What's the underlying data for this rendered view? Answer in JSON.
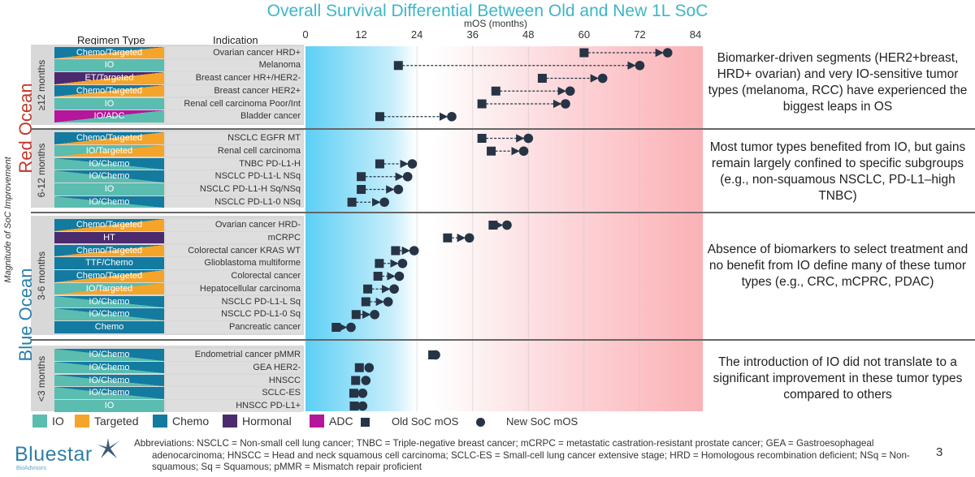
{
  "chart_data": {
    "type": "dumbbell",
    "title": "Overall Survival Differential Between Old and New 1L SoC",
    "xlabel": "mOS (months)",
    "xlim": [
      0,
      84
    ],
    "xticks": [
      "0",
      "12",
      "24",
      "36",
      "48",
      "60",
      "72",
      "84"
    ],
    "grid": "vertical",
    "column_headers": {
      "regimen": "Regimen Type",
      "indication": "Indication"
    },
    "legend_markers": {
      "old": "Old SoC mOS",
      "new": "New SoC mOS"
    },
    "regimen_colors": {
      "IO": "#5bbcb0",
      "Targeted": "#f5a42a",
      "Chemo": "#137aa0",
      "Hormonal": "#4b2a6e",
      "ADC": "#b5169c"
    },
    "regimen_legend": [
      "IO",
      "Targeted",
      "Chemo",
      "Hormonal",
      "ADC"
    ],
    "oceans": {
      "red": "Red Ocean",
      "blue": "Blue Ocean",
      "axis": "Magnitude of SoC Improvement"
    },
    "groups": [
      {
        "label": "≥12 months",
        "note": "Biomarker-driven segments (HER2+breast, HRD+ ovarian) and very IO-sensitive tumor types (melanoma, RCC) have experienced the biggest leaps in OS",
        "rows": [
          {
            "regimen": "Chemo/Targeted",
            "colors": [
              "Chemo",
              "Targeted"
            ],
            "indication": "Ovarian cancer HRD+",
            "old": 60,
            "new": 78
          },
          {
            "regimen": "IO",
            "colors": [
              "IO"
            ],
            "indication": "Melanoma",
            "old": 20,
            "new": 72
          },
          {
            "regimen": "ET/Targeted",
            "colors": [
              "Hormonal",
              "Targeted"
            ],
            "indication": "Breast cancer HR+/HER2-",
            "old": 51,
            "new": 64
          },
          {
            "regimen": "Chemo/Targeted",
            "colors": [
              "Chemo",
              "Targeted"
            ],
            "indication": "Breast cancer HER2+",
            "old": 41,
            "new": 57
          },
          {
            "regimen": "IO",
            "colors": [
              "IO"
            ],
            "indication": "Renal cell carcinoma Poor/Int",
            "old": 38,
            "new": 56
          },
          {
            "regimen": "IO/ADC",
            "colors": [
              "ADC",
              "IO"
            ],
            "indication": "Bladder cancer",
            "old": 16,
            "new": 31.5
          }
        ]
      },
      {
        "label": "6-12 months",
        "note": "Most tumor types benefited from IO, but gains remain largely confined to specific subgroups (e.g., non-squamous NSCLC, PD-L1–high TNBC)",
        "rows": [
          {
            "regimen": "Chemo/Targeted",
            "colors": [
              "Chemo",
              "Targeted"
            ],
            "indication": "NSCLC EGFR MT",
            "old": 38,
            "new": 48
          },
          {
            "regimen": "IO/Targeted",
            "colors": [
              "IO",
              "Targeted"
            ],
            "indication": "Renal cell carcinoma",
            "old": 40,
            "new": 47
          },
          {
            "regimen": "IO/Chemo",
            "colors": [
              "IO",
              "Chemo"
            ],
            "indication": "TNBC PD-L1-H",
            "old": 16,
            "new": 23
          },
          {
            "regimen": "IO/Chemo",
            "colors": [
              "IO",
              "Chemo"
            ],
            "indication": "NSCLC PD-L1-L NSq",
            "old": 12,
            "new": 22
          },
          {
            "regimen": "IO",
            "colors": [
              "IO"
            ],
            "indication": "NSCLC PD-L1-H Sq/NSq",
            "old": 12,
            "new": 20
          },
          {
            "regimen": "IO/Chemo",
            "colors": [
              "IO",
              "Chemo"
            ],
            "indication": "NSCLC PD-L1-0 NSq",
            "old": 10,
            "new": 17
          }
        ]
      },
      {
        "label": "3-6 months",
        "note": "Absence of biomarkers to select treatment and no benefit from IO define many of these tumor types (e.g., CRC, mCPRC, PDAC)",
        "rows": [
          {
            "regimen": "Chemo/Targeted",
            "colors": [
              "Chemo",
              "Targeted"
            ],
            "indication": "Ovarian cancer HRD-",
            "old": 40.4,
            "new": 43.4
          },
          {
            "regimen": "HT",
            "colors": [
              "Hormonal"
            ],
            "indication": "mCRPC",
            "old": 30.6,
            "new": 35.3
          },
          {
            "regimen": "Chemo/Targeted",
            "colors": [
              "Chemo",
              "Targeted"
            ],
            "indication": "Colorectal cancer KRAS WT",
            "old": 19.4,
            "new": 23.4
          },
          {
            "regimen": "TTF/Chemo",
            "colors": [
              "Chemo"
            ],
            "indication": "Glioblastoma multiforme",
            "old": 15.9,
            "new": 20.9
          },
          {
            "regimen": "Chemo/Targeted",
            "colors": [
              "Chemo",
              "Targeted"
            ],
            "indication": "Colorectal cancer",
            "old": 15.6,
            "new": 20.2
          },
          {
            "regimen": "IO/Targeted",
            "colors": [
              "IO",
              "Targeted"
            ],
            "indication": "Hepatocellular carcinoma",
            "old": 13.4,
            "new": 19.1
          },
          {
            "regimen": "IO/Chemo",
            "colors": [
              "IO",
              "Chemo"
            ],
            "indication": "NSCLC PD-L1-L Sq",
            "old": 13,
            "new": 17.8
          },
          {
            "regimen": "IO/Chemo",
            "colors": [
              "IO",
              "Chemo"
            ],
            "indication": "NSCLC PD-L1-0 Sq",
            "old": 10.9,
            "new": 14.9
          },
          {
            "regimen": "Chemo",
            "colors": [
              "Chemo"
            ],
            "indication": "Pancreatic cancer",
            "old": 6.6,
            "new": 9.8
          }
        ]
      },
      {
        "label": "<3 months",
        "note": "The introduction of IO did not translate to a significant improvement in these tumor types compared to others",
        "rows": [
          {
            "regimen": "IO/Chemo",
            "colors": [
              "IO",
              "Chemo"
            ],
            "indication": "Endometrial cancer pMMR",
            "old": 27.4,
            "new": 28
          },
          {
            "regimen": "IO/Chemo",
            "colors": [
              "IO",
              "Chemo"
            ],
            "indication": "GEA HER2-",
            "old": 11.6,
            "new": 13.7
          },
          {
            "regimen": "IO/Chemo",
            "colors": [
              "IO",
              "Chemo"
            ],
            "indication": "HNSCC",
            "old": 10.8,
            "new": 13
          },
          {
            "regimen": "IO/Chemo",
            "colors": [
              "IO",
              "Chemo"
            ],
            "indication": "SCLC-ES",
            "old": 10.4,
            "new": 12.3
          },
          {
            "regimen": "IO",
            "colors": [
              "IO"
            ],
            "indication": "HNSCC PD-L1+",
            "old": 10.5,
            "new": 12.3
          }
        ]
      }
    ]
  },
  "footer": {
    "abbreviations": "Abbreviations: NSCLC = Non-small cell lung cancer; TNBC = Triple-negative breast cancer; mCRPC = metastatic castration-resistant prostate cancer; GEA = Gastroesophageal adenocarcinoma; HNSCC = Head and neck squamous cell carcinoma; SCLC-ES = Small-cell lung cancer extensive stage; HRD = Homologous recombination deficient; NSq = Non-squamous; Sq = Squamous; pMMR = Mismatch repair proficient",
    "page_number": "3",
    "logo_text": "Bluestar",
    "logo_sub": "BioAdvisors"
  },
  "colors": {
    "title": "#3db6c6",
    "red_ocean": "#c0392b",
    "blue_ocean": "#2a7fa8",
    "marker": "#263445"
  }
}
